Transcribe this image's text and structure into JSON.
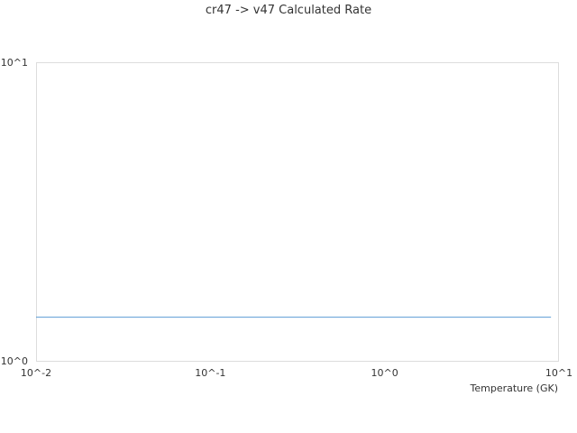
{
  "chart_data": {
    "type": "line",
    "title": "cr47 -> v47 Calculated Rate",
    "xlabel": "Temperature (GK)",
    "ylabel": "",
    "xscale": "log",
    "yscale": "log",
    "xlim": [
      0.01,
      10
    ],
    "ylim": [
      1,
      10
    ],
    "x_ticks": [
      "10^-2",
      "10^-1",
      "10^0",
      "10^1"
    ],
    "y_ticks": [
      "10^0",
      "10^1"
    ],
    "grid": false,
    "series": [
      {
        "color": "#5b9bd5",
        "x": [
          0.01,
          9
        ],
        "y": [
          1.4,
          1.4
        ]
      }
    ]
  }
}
